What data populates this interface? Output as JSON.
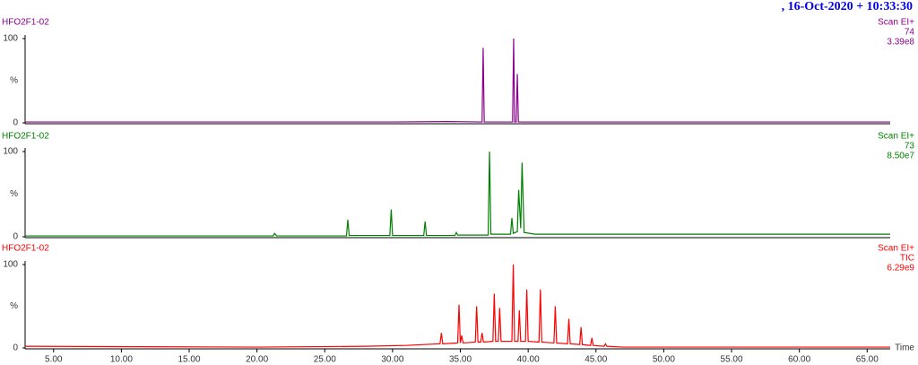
{
  "header": ", 16-Oct-2020 + 10:33:30",
  "chart_data": [
    {
      "type": "line",
      "title": "HFO2F1-02",
      "annotations": [
        "Scan EI+",
        "74",
        "3.39e8"
      ],
      "y_label": "%",
      "xlim": [
        2.9,
        66.7
      ],
      "ylim": [
        0,
        100
      ],
      "yticks": [
        0,
        100
      ],
      "x": [
        2.9,
        10,
        20,
        30,
        34,
        36.6,
        36.68,
        36.76,
        38.85,
        38.93,
        39.0,
        39.12,
        39.2,
        39.28,
        45,
        55,
        66.7
      ],
      "series": [
        {
          "color": "#8b008b",
          "values": [
            1,
            1,
            1,
            1,
            1.5,
            1,
            89,
            1,
            1,
            100,
            1,
            1,
            58,
            1,
            1,
            1,
            1
          ]
        }
      ]
    },
    {
      "type": "line",
      "title": "HFO2F1-02",
      "annotations": [
        "Scan EI+",
        "73",
        "8.50e7"
      ],
      "y_label": "%",
      "xlim": [
        2.9,
        66.7
      ],
      "ylim": [
        0,
        100
      ],
      "yticks": [
        0,
        100
      ],
      "x": [
        2.9,
        21.2,
        21.3,
        21.45,
        26.6,
        26.7,
        26.8,
        29.8,
        29.9,
        30.0,
        32.3,
        32.4,
        32.5,
        34.6,
        34.7,
        34.8,
        37.05,
        37.15,
        37.25,
        38.7,
        38.8,
        38.9,
        39.2,
        39.3,
        39.45,
        39.55,
        39.7,
        40.5,
        47,
        55,
        66.7
      ],
      "series": [
        {
          "color": "#008000",
          "values": [
            1,
            1,
            4,
            1,
            1,
            20,
            1.5,
            1.5,
            32,
            1.5,
            1.5,
            18,
            1.5,
            1.5,
            5,
            2,
            2,
            100,
            3,
            3,
            22,
            4,
            6,
            55,
            10,
            87,
            5,
            3,
            3,
            3,
            3
          ]
        }
      ]
    },
    {
      "type": "line",
      "title": "HFO2F1-02",
      "annotations": [
        "Scan EI+",
        "TIC",
        "6.29e9"
      ],
      "y_label": "%",
      "x_label": "Time",
      "xlim": [
        2.9,
        66.7
      ],
      "ylim": [
        0,
        100
      ],
      "yticks": [
        0,
        100
      ],
      "xticks": [
        {
          "value": 5,
          "label": "5.00"
        },
        {
          "value": 10,
          "label": "10.00"
        },
        {
          "value": 15,
          "label": "15.00"
        },
        {
          "value": 20,
          "label": "20.00"
        },
        {
          "value": 25,
          "label": "25.00"
        },
        {
          "value": 30,
          "label": "30.00"
        },
        {
          "value": 35,
          "label": "35.00"
        },
        {
          "value": 40,
          "label": "40.00"
        },
        {
          "value": 45,
          "label": "45.00"
        },
        {
          "value": 50,
          "label": "50.00"
        },
        {
          "value": 55,
          "label": "55.00"
        },
        {
          "value": 60,
          "label": "60.00"
        },
        {
          "value": 65,
          "label": "65.00"
        }
      ],
      "x": [
        2.9,
        20,
        28,
        31,
        33.5,
        33.6,
        33.7,
        34.8,
        34.9,
        35.0,
        35.1,
        35.2,
        36.1,
        36.2,
        36.3,
        36.5,
        36.6,
        36.7,
        37.4,
        37.5,
        37.6,
        37.8,
        37.9,
        38.0,
        38.8,
        38.9,
        39.0,
        39.25,
        39.35,
        39.45,
        39.8,
        39.9,
        40.0,
        40.8,
        40.9,
        41.0,
        41.9,
        42.0,
        42.1,
        42.9,
        43.0,
        43.1,
        43.8,
        43.9,
        44.0,
        44.6,
        44.7,
        44.8,
        45.6,
        45.7,
        45.8,
        47,
        55,
        66.7
      ],
      "series": [
        {
          "color": "#ff0000",
          "values": [
            2,
            1,
            2,
            3,
            5,
            18,
            5,
            6,
            52,
            6,
            15,
            6,
            7,
            50,
            7,
            7,
            18,
            7,
            8,
            65,
            8,
            8,
            48,
            8,
            8,
            100,
            8,
            8,
            45,
            8,
            8,
            70,
            8,
            7,
            70,
            7,
            6,
            50,
            6,
            5,
            35,
            5,
            4,
            25,
            4,
            3,
            12,
            3,
            2,
            5,
            2,
            1,
            1,
            1
          ]
        }
      ]
    }
  ]
}
